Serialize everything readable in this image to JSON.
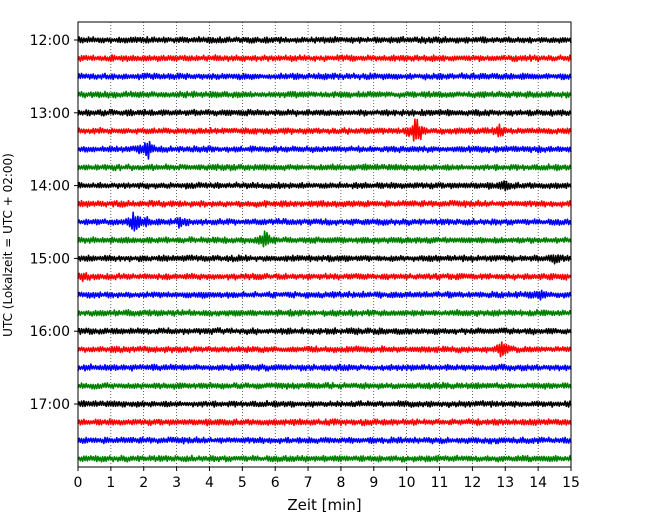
{
  "chart_data": {
    "type": "line",
    "title": "",
    "xlabel": "Zeit  [min]",
    "ylabel": "UTC (Lokalzeit = UTC + 02:00)",
    "xlim": [
      0,
      15
    ],
    "x_ticks": [
      0,
      1,
      2,
      3,
      4,
      5,
      6,
      7,
      8,
      9,
      10,
      11,
      12,
      13,
      14,
      15
    ],
    "grid": "vertical dotted at every minute",
    "trace_interval_minutes": 15,
    "y_tick_labels": [
      "12:00",
      "13:00",
      "14:00",
      "15:00",
      "16:00",
      "17:00"
    ],
    "trace_colors": [
      "#000000",
      "#ff0000",
      "#0000ff",
      "#008000"
    ],
    "traces": [
      {
        "start": "12:00",
        "color": "#000000",
        "events": []
      },
      {
        "start": "12:15",
        "color": "#ff0000",
        "events": []
      },
      {
        "start": "12:30",
        "color": "#0000ff",
        "events": []
      },
      {
        "start": "12:45",
        "color": "#008000",
        "events": []
      },
      {
        "start": "13:00",
        "color": "#000000",
        "events": []
      },
      {
        "start": "13:15",
        "color": "#ff0000",
        "events": [
          {
            "minute": 10.3,
            "amplitude": 2.4
          },
          {
            "minute": 12.8,
            "amplitude": 0.8
          }
        ]
      },
      {
        "start": "13:30",
        "color": "#0000ff",
        "events": [
          {
            "minute": 2.1,
            "amplitude": 1.6
          }
        ]
      },
      {
        "start": "13:45",
        "color": "#008000",
        "events": []
      },
      {
        "start": "14:00",
        "color": "#000000",
        "events": [
          {
            "minute": 13.0,
            "amplitude": 0.5
          }
        ]
      },
      {
        "start": "14:15",
        "color": "#ff0000",
        "events": []
      },
      {
        "start": "14:30",
        "color": "#0000ff",
        "events": [
          {
            "minute": 1.7,
            "amplitude": 1.5
          },
          {
            "minute": 2.1,
            "amplitude": 0.6
          },
          {
            "minute": 3.1,
            "amplitude": 0.5
          }
        ]
      },
      {
        "start": "14:45",
        "color": "#008000",
        "events": [
          {
            "minute": 5.7,
            "amplitude": 1.5
          }
        ]
      },
      {
        "start": "15:00",
        "color": "#000000",
        "events": [
          {
            "minute": 14.5,
            "amplitude": 0.5
          }
        ]
      },
      {
        "start": "15:15",
        "color": "#ff0000",
        "events": [
          {
            "minute": 0.2,
            "amplitude": 0.5
          }
        ]
      },
      {
        "start": "15:30",
        "color": "#0000ff",
        "events": [
          {
            "minute": 14.0,
            "amplitude": 0.6
          }
        ]
      },
      {
        "start": "15:45",
        "color": "#008000",
        "events": []
      },
      {
        "start": "16:00",
        "color": "#000000",
        "events": []
      },
      {
        "start": "16:15",
        "color": "#ff0000",
        "events": [
          {
            "minute": 12.9,
            "amplitude": 1.0
          }
        ]
      },
      {
        "start": "16:30",
        "color": "#0000ff",
        "events": []
      },
      {
        "start": "16:45",
        "color": "#008000",
        "events": []
      },
      {
        "start": "17:00",
        "color": "#000000",
        "events": []
      },
      {
        "start": "17:15",
        "color": "#ff0000",
        "events": []
      },
      {
        "start": "17:30",
        "color": "#0000ff",
        "events": []
      },
      {
        "start": "17:45",
        "color": "#008000",
        "events": []
      }
    ]
  }
}
